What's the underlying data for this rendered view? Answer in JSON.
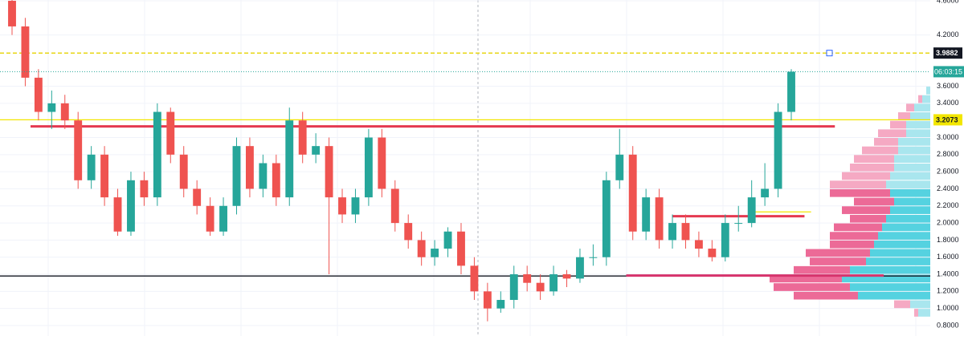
{
  "chart_data": {
    "type": "candlestick",
    "open": [
      4.6,
      4.3,
      3.7,
      3.3,
      3.4,
      3.2,
      2.5,
      2.8,
      2.3,
      1.9,
      2.5,
      2.3,
      3.3,
      2.8,
      2.4,
      2.2,
      1.9,
      2.2,
      2.9,
      2.4,
      2.7,
      2.3,
      3.2,
      2.8,
      2.9,
      2.3,
      2.1,
      2.3,
      3.0,
      2.4,
      2.0,
      1.8,
      1.6,
      1.7,
      1.9,
      1.5,
      1.2,
      1.0,
      1.1,
      1.4,
      1.3,
      1.2,
      1.4,
      1.35,
      1.6,
      1.6,
      2.5,
      2.8,
      1.9,
      2.3,
      1.8,
      2.0,
      1.8,
      1.7,
      1.6,
      2.0,
      2.0,
      2.3,
      2.4,
      3.3
    ],
    "high": [
      4.65,
      4.4,
      3.8,
      3.55,
      3.5,
      3.3,
      2.9,
      2.9,
      2.4,
      2.6,
      2.6,
      3.4,
      3.35,
      2.9,
      2.5,
      2.3,
      2.3,
      3.0,
      3.0,
      2.8,
      2.8,
      3.35,
      3.3,
      3.05,
      3.0,
      2.4,
      2.4,
      3.1,
      3.1,
      2.5,
      2.1,
      1.9,
      1.8,
      1.95,
      2.0,
      1.6,
      1.3,
      1.2,
      1.5,
      1.5,
      1.4,
      1.5,
      1.45,
      1.7,
      1.75,
      2.6,
      3.1,
      2.9,
      2.4,
      2.4,
      2.1,
      2.1,
      1.9,
      1.8,
      2.1,
      2.2,
      2.5,
      2.7,
      3.4,
      3.8
    ],
    "low": [
      4.2,
      3.6,
      3.2,
      3.1,
      3.1,
      2.4,
      2.4,
      2.2,
      1.85,
      1.85,
      2.2,
      2.2,
      2.7,
      2.3,
      2.1,
      1.85,
      1.85,
      2.1,
      2.3,
      2.3,
      2.2,
      2.2,
      2.7,
      2.7,
      1.4,
      2.0,
      2.0,
      2.2,
      2.3,
      1.9,
      1.7,
      1.5,
      1.5,
      1.6,
      1.4,
      1.1,
      0.85,
      0.95,
      1.0,
      1.2,
      1.1,
      1.15,
      1.25,
      1.3,
      1.5,
      1.5,
      2.4,
      1.8,
      1.8,
      1.7,
      1.7,
      1.7,
      1.6,
      1.55,
      1.55,
      1.9,
      1.95,
      2.2,
      2.3,
      3.2
    ],
    "close": [
      4.3,
      3.7,
      3.3,
      3.4,
      3.2,
      2.5,
      2.8,
      2.3,
      1.9,
      2.5,
      2.3,
      3.3,
      2.8,
      2.4,
      2.2,
      1.9,
      2.2,
      2.9,
      2.4,
      2.7,
      2.3,
      3.2,
      2.8,
      2.9,
      2.3,
      2.1,
      2.3,
      3.0,
      2.4,
      2.0,
      1.8,
      1.6,
      1.7,
      1.9,
      1.5,
      1.2,
      1.0,
      1.1,
      1.4,
      1.3,
      1.2,
      1.4,
      1.35,
      1.6,
      1.6,
      2.5,
      2.8,
      1.9,
      2.3,
      1.8,
      2.0,
      1.8,
      1.7,
      1.6,
      2.0,
      2.0,
      2.3,
      2.4,
      3.3,
      3.77
    ],
    "up_color": "#26a69a",
    "down_color": "#ef5350",
    "ylim": [
      0.678,
      4.609
    ],
    "yticks": [
      {
        "value": 4.6,
        "label": "4.6000"
      },
      {
        "value": 4.2,
        "label": "4.2000"
      },
      {
        "value": 3.6,
        "label": "3.6000"
      },
      {
        "value": 3.4,
        "label": "3.4000"
      },
      {
        "value": 3.0,
        "label": "3.0000"
      },
      {
        "value": 2.8,
        "label": "2.8000"
      },
      {
        "value": 2.6,
        "label": "2.6000"
      },
      {
        "value": 2.4,
        "label": "2.4000"
      },
      {
        "value": 2.2,
        "label": "2.2000"
      },
      {
        "value": 2.0,
        "label": "2.0000"
      },
      {
        "value": 1.8,
        "label": "1.8000"
      },
      {
        "value": 1.6,
        "label": "1.6000"
      },
      {
        "value": 1.4,
        "label": "1.4000"
      },
      {
        "value": 1.2,
        "label": "1.2000"
      },
      {
        "value": 1.0,
        "label": "1.0000"
      },
      {
        "value": 0.8,
        "label": "0.8000"
      }
    ],
    "grid": true,
    "countdown": "06:03:15",
    "lines": [
      {
        "value": 3.9882,
        "color": "#e6d200",
        "style": "dashed",
        "labeled": true,
        "label_bg": "#131722",
        "label_fg": "#ffffff"
      },
      {
        "value": 3.2073,
        "color": "#f2e600",
        "style": "solid",
        "labeled": true,
        "label_bg": "#f2e600",
        "label_fg": "#131722"
      },
      {
        "value": 3.13,
        "color": "#e53950",
        "style": "thick",
        "from": 1.4,
        "to": 62.3
      },
      {
        "value": 1.38,
        "color": "#131722",
        "style": "solid"
      },
      {
        "value": 1.385,
        "color": "#d6336c",
        "style": "thick",
        "from": 46.5,
        "to": 66
      },
      {
        "value": 2.08,
        "color": "#e53950",
        "style": "thick",
        "from": 50,
        "to": 60
      },
      {
        "value": 2.13,
        "color": "#f2e600",
        "style": "solid",
        "from": 56,
        "to": 60.5
      }
    ],
    "profile": {
      "levels": [
        0.95,
        1.05,
        1.15,
        1.25,
        1.35,
        1.45,
        1.55,
        1.65,
        1.75,
        1.85,
        1.95,
        2.05,
        2.15,
        2.25,
        2.35,
        2.45,
        2.55,
        2.65,
        2.75,
        2.85,
        2.95,
        3.05,
        3.15,
        3.25,
        3.35,
        3.45,
        3.55
      ],
      "up": [
        15,
        25,
        90,
        100,
        110,
        100,
        80,
        75,
        70,
        65,
        60,
        55,
        50,
        45,
        50,
        55,
        50,
        45,
        45,
        40,
        40,
        30,
        30,
        25,
        20,
        10,
        5
      ],
      "down": [
        5,
        20,
        80,
        95,
        90,
        70,
        70,
        80,
        55,
        60,
        60,
        45,
        60,
        50,
        75,
        70,
        60,
        55,
        50,
        45,
        30,
        35,
        20,
        15,
        10,
        5,
        0
      ],
      "value_area": [
        1.1,
        2.4
      ],
      "up_color": "#55d2e0",
      "down_color": "#ec6a97",
      "up_light": "#a9e6ee",
      "down_light": "#f5a9c3"
    }
  }
}
